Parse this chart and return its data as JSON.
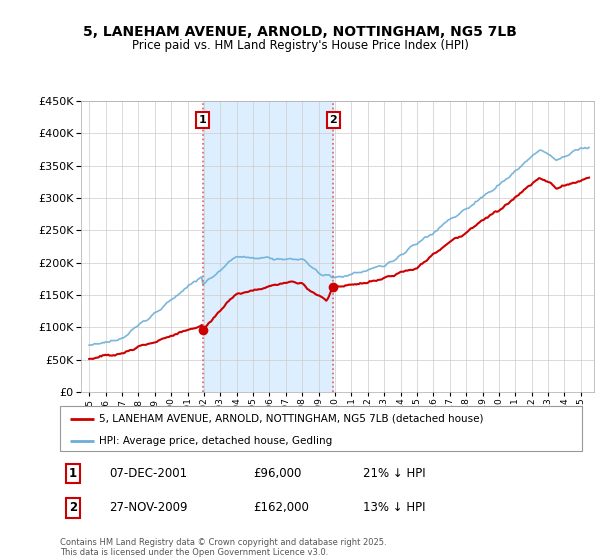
{
  "title": "5, LANEHAM AVENUE, ARNOLD, NOTTINGHAM, NG5 7LB",
  "subtitle": "Price paid vs. HM Land Registry's House Price Index (HPI)",
  "legend_entry1": "5, LANEHAM AVENUE, ARNOLD, NOTTINGHAM, NG5 7LB (detached house)",
  "legend_entry2": "HPI: Average price, detached house, Gedling",
  "annotation1_date": "07-DEC-2001",
  "annotation1_price": "£96,000",
  "annotation1_hpi": "21% ↓ HPI",
  "annotation2_date": "27-NOV-2009",
  "annotation2_price": "£162,000",
  "annotation2_hpi": "13% ↓ HPI",
  "footer": "Contains HM Land Registry data © Crown copyright and database right 2025.\nThis data is licensed under the Open Government Licence v3.0.",
  "sale1_x": 2001.92,
  "sale1_y": 96000,
  "sale2_x": 2009.9,
  "sale2_y": 162000,
  "hpi_color": "#6baed6",
  "price_color": "#cc0000",
  "shade_color": "#ddeeff",
  "vline_color": "#e06060",
  "ylim": [
    0,
    450000
  ],
  "xlim": [
    1994.5,
    2025.8
  ]
}
